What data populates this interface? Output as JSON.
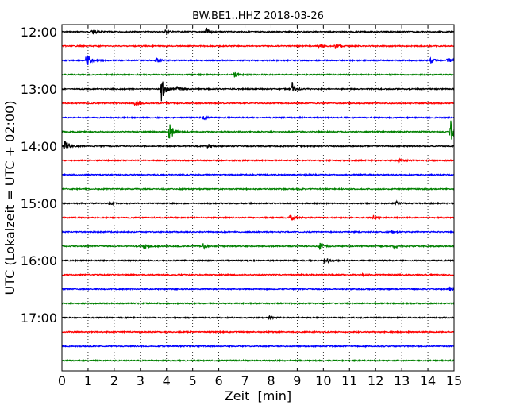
{
  "chart_data": {
    "type": "line",
    "title": "BW.BE1..HHZ 2018-03-26",
    "xlabel": "Zeit  [min]",
    "ylabel": "UTC (Lokalzeit = UTC + 02:00)",
    "xlim": [
      0,
      15
    ],
    "x_ticks": [
      "0",
      "1",
      "2",
      "3",
      "4",
      "5",
      "6",
      "7",
      "8",
      "9",
      "10",
      "11",
      "12",
      "13",
      "14",
      "15"
    ],
    "y_tick_labels": [
      "12:00",
      "13:00",
      "14:00",
      "15:00",
      "16:00",
      "17:00"
    ],
    "grid": {
      "x": true,
      "style": "dotted"
    },
    "trace_colors": [
      "#000000",
      "#ff0000",
      "#0000ff",
      "#008000"
    ],
    "series": [
      {
        "start": "12:00",
        "events": [
          {
            "t": 1.15,
            "amp": 0.5
          },
          {
            "t": 3.9,
            "amp": 0.3
          },
          {
            "t": 5.5,
            "amp": 0.6
          }
        ]
      },
      {
        "start": "12:15",
        "events": [
          {
            "t": 9.8,
            "amp": 0.3
          },
          {
            "t": 10.45,
            "amp": 0.35
          }
        ]
      },
      {
        "start": "12:30",
        "events": [
          {
            "t": 0.95,
            "amp": 1.1
          },
          {
            "t": 3.6,
            "amp": 0.35
          },
          {
            "t": 14.1,
            "amp": 0.35
          },
          {
            "t": 14.75,
            "amp": 0.45
          }
        ]
      },
      {
        "start": "12:45",
        "events": [
          {
            "t": 6.6,
            "amp": 0.4
          }
        ]
      },
      {
        "start": "13:00",
        "events": [
          {
            "t": 3.8,
            "amp": 1.55
          },
          {
            "t": 4.4,
            "amp": 0.3
          },
          {
            "t": 8.8,
            "amp": 0.95
          }
        ]
      },
      {
        "start": "13:15",
        "events": [
          {
            "t": 2.8,
            "amp": 0.5
          }
        ]
      },
      {
        "start": "13:30",
        "events": [
          {
            "t": 5.4,
            "amp": 0.2
          }
        ]
      },
      {
        "start": "13:45",
        "events": [
          {
            "t": 4.1,
            "amp": 1.6
          },
          {
            "t": 14.85,
            "amp": 1.8
          }
        ]
      },
      {
        "start": "14:00",
        "events": [
          {
            "t": 0.1,
            "amp": 0.7
          },
          {
            "t": 5.6,
            "amp": 0.25
          }
        ]
      },
      {
        "start": "14:15",
        "events": [
          {
            "t": 12.9,
            "amp": 0.2
          }
        ]
      },
      {
        "start": "14:30",
        "events": [
          {
            "t": 9.3,
            "amp": 0.15
          }
        ]
      },
      {
        "start": "14:45",
        "events": [
          {
            "t": 9.0,
            "amp": 0.15
          }
        ]
      },
      {
        "start": "15:00",
        "events": [
          {
            "t": 1.8,
            "amp": 0.2
          },
          {
            "t": 12.8,
            "amp": 0.25
          }
        ]
      },
      {
        "start": "15:15",
        "events": [
          {
            "t": 8.75,
            "amp": 0.5
          },
          {
            "t": 11.9,
            "amp": 0.3
          }
        ]
      },
      {
        "start": "15:30",
        "events": [
          {
            "t": 12.6,
            "amp": 0.2
          }
        ]
      },
      {
        "start": "15:45",
        "events": [
          {
            "t": 3.15,
            "amp": 0.45
          },
          {
            "t": 5.4,
            "amp": 0.3
          },
          {
            "t": 9.85,
            "amp": 0.45
          },
          {
            "t": 12.7,
            "amp": 0.25
          }
        ]
      },
      {
        "start": "16:00",
        "events": [
          {
            "t": 10.05,
            "amp": 0.55
          }
        ]
      },
      {
        "start": "16:15",
        "events": [
          {
            "t": 11.5,
            "amp": 0.15
          }
        ]
      },
      {
        "start": "16:30",
        "events": [
          {
            "t": 14.8,
            "amp": 0.35
          }
        ]
      },
      {
        "start": "16:45",
        "events": []
      },
      {
        "start": "17:00",
        "events": [
          {
            "t": 7.9,
            "amp": 0.2
          }
        ]
      },
      {
        "start": "17:15",
        "events": []
      },
      {
        "start": "17:30",
        "events": []
      },
      {
        "start": "17:45",
        "events": []
      }
    ]
  }
}
